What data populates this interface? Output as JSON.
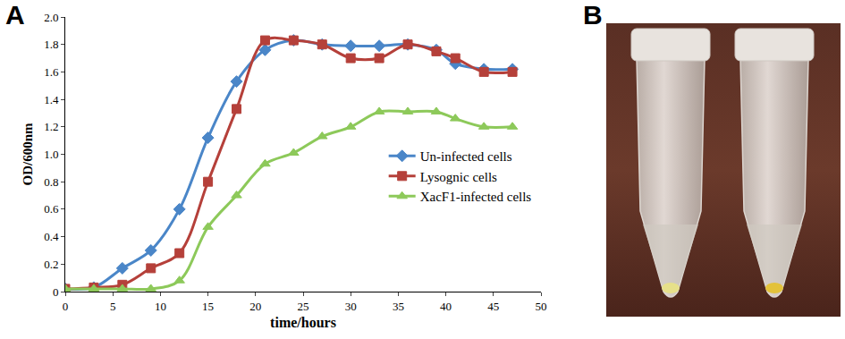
{
  "chart_data": {
    "type": "line",
    "x_label": "time/hours",
    "y_label": "OD/600nm",
    "x": [
      0,
      3,
      6,
      9,
      12,
      15,
      18,
      21,
      24,
      27,
      30,
      33,
      36,
      39,
      41,
      44,
      47
    ],
    "series": [
      {
        "name": "Un-infected cells",
        "color": "#4a86c8",
        "marker": "diamond",
        "line_style": "spline",
        "values": [
          0.02,
          0.03,
          0.17,
          0.3,
          0.6,
          1.12,
          1.53,
          1.76,
          1.83,
          1.8,
          1.79,
          1.79,
          1.8,
          1.76,
          1.66,
          1.62,
          1.62
        ]
      },
      {
        "name": "Lysognic cells",
        "color": "#b5403a",
        "marker": "square",
        "line_style": "spline",
        "values": [
          0.02,
          0.03,
          0.05,
          0.17,
          0.28,
          0.8,
          1.33,
          1.83,
          1.83,
          1.8,
          1.7,
          1.7,
          1.8,
          1.75,
          1.7,
          1.6,
          1.6
        ]
      },
      {
        "name": "XacF1-infected cells",
        "color": "#8dc95a",
        "marker": "triangle-up",
        "line_style": "spline",
        "values": [
          0.02,
          0.02,
          0.02,
          0.02,
          0.08,
          0.47,
          0.7,
          0.93,
          1.01,
          1.13,
          1.2,
          1.31,
          1.31,
          1.31,
          1.26,
          1.2,
          1.2
        ]
      }
    ],
    "xlim": [
      0,
      50
    ],
    "xticks": [
      0,
      5,
      10,
      15,
      20,
      25,
      30,
      35,
      40,
      45,
      50
    ],
    "ylim": [
      0,
      2
    ],
    "yticks": [
      0,
      0.2,
      0.4,
      0.6,
      0.8,
      {
        "value": 1,
        "label": "1.0"
      },
      1.2,
      1.4,
      1.6,
      1.8,
      {
        "value": 2,
        "label": "2.0"
      }
    ],
    "grid": false,
    "legend": "center right"
  },
  "panel_labels": [
    "A",
    "B"
  ]
}
